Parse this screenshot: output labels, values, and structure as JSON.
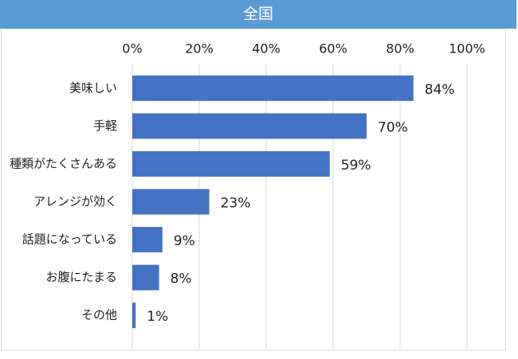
{
  "chart_data": {
    "type": "bar",
    "title": "全国",
    "categories": [
      "美味しい",
      "手軽",
      "種類がたくさんある",
      "アレンジが効く",
      "話題になっている",
      "お腹にたまる",
      "その他"
    ],
    "values": [
      84,
      70,
      59,
      23,
      9,
      8,
      1
    ],
    "value_labels": [
      "84%",
      "70%",
      "59%",
      "23%",
      "9%",
      "8%",
      "1%"
    ],
    "color": "#4472c4",
    "xlim": [
      0,
      100
    ],
    "xticks": [
      {
        "value": 0,
        "label": "0%"
      },
      {
        "value": 20,
        "label": "20%"
      },
      {
        "value": 40,
        "label": "40%"
      },
      {
        "value": 60,
        "label": "60%"
      },
      {
        "value": 80,
        "label": "80%"
      },
      {
        "value": 100,
        "label": "100%"
      }
    ],
    "grid": true
  }
}
